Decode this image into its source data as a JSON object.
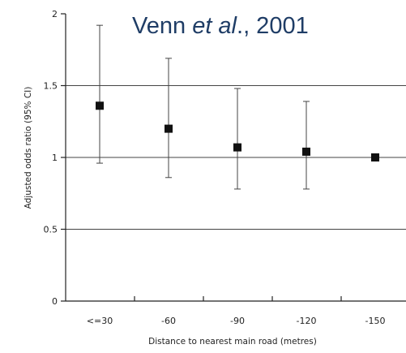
{
  "caption": {
    "author": "Venn ",
    "etal": "et al",
    "rest": "., 2001"
  },
  "chart_data": {
    "type": "scatter",
    "title": "",
    "xlabel": "Distance to nearest main road (metres)",
    "ylabel": "Adjusted odds ratio (95% CI)",
    "categories": [
      "<=30",
      "-60",
      "-90",
      "-120",
      "-150"
    ],
    "values": [
      1.36,
      1.2,
      1.07,
      1.04,
      1.0
    ],
    "ci_lower": [
      0.96,
      0.86,
      0.78,
      0.78,
      1.0
    ],
    "ci_upper": [
      1.92,
      1.69,
      1.48,
      1.39,
      1.0
    ],
    "yticks": [
      "0",
      "0.5",
      "1",
      "1.5",
      "2"
    ],
    "ylim": [
      0,
      2
    ],
    "grid": "horizontal gridlines at 0.5, 1 and 1.5"
  }
}
